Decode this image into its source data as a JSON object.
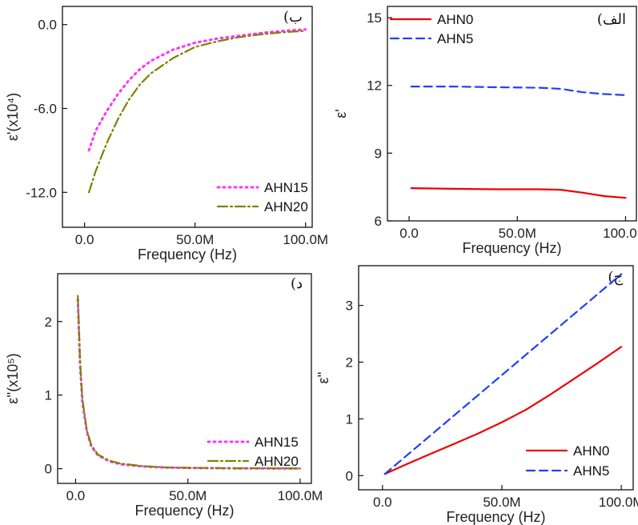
{
  "chart_data": [
    {
      "panel_label": "(ب",
      "type": "line",
      "xlabel": "Frequency (Hz)",
      "ylabel": "ε'(x10⁴)",
      "xlim": [
        -10,
        103
      ],
      "ylim": [
        -14.5,
        1.3
      ],
      "xticks": [
        0,
        50,
        100
      ],
      "xtick_labels": [
        "0.0",
        "50.0M",
        "100.0M"
      ],
      "yticks": [
        0,
        -6,
        -12
      ],
      "ytick_labels": [
        "0.0",
        "-6.0",
        "-12.0"
      ],
      "legend_position": "bottom-right",
      "series": [
        {
          "name": "AHN15",
          "color": "#ff33ff",
          "dash": "2,5",
          "x": [
            2,
            5,
            10,
            15,
            20,
            25,
            30,
            40,
            50,
            60,
            70,
            80,
            90,
            100
          ],
          "y": [
            -9,
            -7.6,
            -6.2,
            -5,
            -4,
            -3.2,
            -2.6,
            -1.8,
            -1.3,
            -1,
            -0.8,
            -0.6,
            -0.45,
            -0.35
          ]
        },
        {
          "name": "AHN20",
          "color": "#808000",
          "dash": "12,4,2,4",
          "x": [
            2,
            5,
            10,
            15,
            20,
            25,
            30,
            40,
            50,
            60,
            70,
            80,
            90,
            100
          ],
          "y": [
            -12,
            -10.5,
            -8.5,
            -6.8,
            -5.4,
            -4.3,
            -3.5,
            -2.4,
            -1.6,
            -1.2,
            -0.9,
            -0.7,
            -0.55,
            -0.45
          ]
        }
      ]
    },
    {
      "panel_label": "(الف",
      "type": "line",
      "xlabel": "Frequency (Hz)",
      "ylabel": "ε'",
      "xlim": [
        -10,
        105
      ],
      "ylim": [
        6,
        15.5
      ],
      "xticks": [
        0,
        50,
        100
      ],
      "xtick_labels": [
        "0.0",
        "50.0M",
        "100.0M"
      ],
      "yticks": [
        6,
        9,
        12,
        15
      ],
      "ytick_labels": [
        "6",
        "9",
        "12",
        "15"
      ],
      "legend_position": "top-left",
      "series": [
        {
          "name": "AHN0",
          "color": "#ee0000",
          "dash": "",
          "x": [
            1,
            20,
            40,
            60,
            70,
            80,
            90,
            100
          ],
          "y": [
            7.45,
            7.42,
            7.4,
            7.4,
            7.38,
            7.25,
            7.1,
            7.02
          ]
        },
        {
          "name": "AHN5",
          "color": "#1f3fff",
          "dash": "10,6",
          "x": [
            1,
            20,
            40,
            60,
            70,
            80,
            90,
            100
          ],
          "y": [
            11.95,
            11.95,
            11.92,
            11.9,
            11.85,
            11.7,
            11.62,
            11.57
          ]
        }
      ]
    },
    {
      "panel_label": "(د",
      "type": "line",
      "xlabel": "Frequency (Hz)",
      "ylabel": "ε''(x10⁵)",
      "xlim": [
        -8,
        105
      ],
      "ylim": [
        -0.2,
        2.65
      ],
      "xticks": [
        0,
        50,
        100
      ],
      "xtick_labels": [
        "0.0",
        "50.0M",
        "100.0M"
      ],
      "yticks": [
        0,
        1,
        2
      ],
      "ytick_labels": [
        "0",
        "1",
        "2"
      ],
      "legend_position": "bottom-right",
      "series": [
        {
          "name": "AHN15",
          "color": "#ff33ff",
          "dash": "2,5",
          "x": [
            1,
            2,
            3,
            5,
            7,
            10,
            15,
            20,
            30,
            40,
            50,
            70,
            100
          ],
          "y": [
            2.3,
            1.4,
            0.9,
            0.5,
            0.3,
            0.18,
            0.1,
            0.06,
            0.03,
            0.015,
            0.01,
            0.005,
            0.002
          ]
        },
        {
          "name": "AHN20",
          "color": "#808000",
          "dash": "12,4,2,4",
          "x": [
            1,
            2,
            3,
            5,
            7,
            10,
            15,
            20,
            30,
            40,
            50,
            70,
            100
          ],
          "y": [
            2.35,
            1.45,
            0.95,
            0.52,
            0.32,
            0.19,
            0.11,
            0.07,
            0.035,
            0.018,
            0.012,
            0.006,
            0.003
          ]
        }
      ]
    },
    {
      "panel_label": "(ج",
      "type": "line",
      "xlabel": "Frequency (Hz)",
      "ylabel": "ε''",
      "xlim": [
        -10,
        105
      ],
      "ylim": [
        -0.25,
        3.7
      ],
      "xticks": [
        0,
        50,
        100
      ],
      "xtick_labels": [
        "0.0",
        "50.0M",
        "100.0M"
      ],
      "yticks": [
        0,
        1,
        2,
        3
      ],
      "ytick_labels": [
        "0",
        "1",
        "2",
        "3"
      ],
      "legend_position": "bottom-right",
      "series": [
        {
          "name": "AHN0",
          "color": "#ee0000",
          "dash": "",
          "x": [
            1,
            10,
            20,
            30,
            40,
            50,
            60,
            70,
            80,
            90,
            100
          ],
          "y": [
            0.03,
            0.2,
            0.38,
            0.56,
            0.74,
            0.94,
            1.16,
            1.42,
            1.7,
            1.98,
            2.27
          ]
        },
        {
          "name": "AHN5",
          "color": "#1f3fff",
          "dash": "10,6",
          "x": [
            1,
            100
          ],
          "y": [
            0.03,
            3.55
          ]
        }
      ]
    }
  ]
}
